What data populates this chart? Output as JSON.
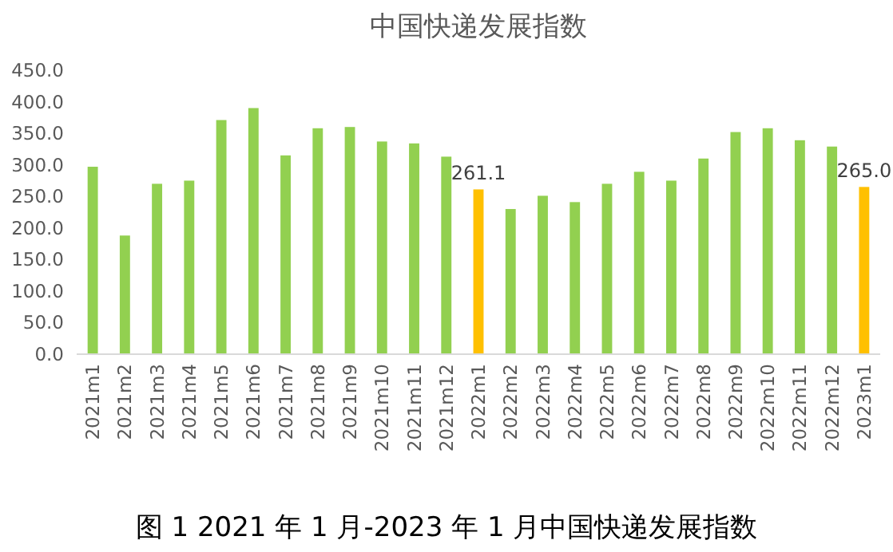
{
  "chart_data": {
    "type": "bar",
    "title": "中国快递发展指数",
    "categories": [
      "2021m1",
      "2021m2",
      "2021m3",
      "2021m4",
      "2021m5",
      "2021m6",
      "2021m7",
      "2021m8",
      "2021m9",
      "2021m10",
      "2021m11",
      "2021m12",
      "2022m1",
      "2022m2",
      "2022m3",
      "2022m4",
      "2022m5",
      "2022m6",
      "2022m7",
      "2022m8",
      "2022m9",
      "2022m10",
      "2022m11",
      "2022m12",
      "2023m1"
    ],
    "values": [
      297,
      188,
      270,
      275,
      371,
      390,
      315,
      358,
      360,
      337,
      334,
      313,
      261.1,
      230,
      251,
      241,
      270,
      289,
      275,
      310,
      352,
      358,
      339,
      329,
      265.0
    ],
    "colors": [
      "#92d050",
      "#92d050",
      "#92d050",
      "#92d050",
      "#92d050",
      "#92d050",
      "#92d050",
      "#92d050",
      "#92d050",
      "#92d050",
      "#92d050",
      "#92d050",
      "#ffc000",
      "#92d050",
      "#92d050",
      "#92d050",
      "#92d050",
      "#92d050",
      "#92d050",
      "#92d050",
      "#92d050",
      "#92d050",
      "#92d050",
      "#92d050",
      "#ffc000"
    ],
    "value_labels": [
      null,
      null,
      null,
      null,
      null,
      null,
      null,
      null,
      null,
      null,
      null,
      null,
      "261.1",
      null,
      null,
      null,
      null,
      null,
      null,
      null,
      null,
      null,
      null,
      null,
      "265.0"
    ],
    "ylim": [
      0,
      450
    ],
    "yticks": [
      {
        "value": 0,
        "label": "0.0"
      },
      {
        "value": 50,
        "label": "50.0"
      },
      {
        "value": 100,
        "label": "100.0"
      },
      {
        "value": 150,
        "label": "150.0"
      },
      {
        "value": 200,
        "label": "200.0"
      },
      {
        "value": 250,
        "label": "250.0"
      },
      {
        "value": 300,
        "label": "300.0"
      },
      {
        "value": 350,
        "label": "350.0"
      },
      {
        "value": 400,
        "label": "400.0"
      },
      {
        "value": 450,
        "label": "450.0"
      }
    ],
    "grid": false,
    "annotations": [
      "图 1 2021 年 1 月-2023 年 1 月中国快递发展指数"
    ]
  }
}
